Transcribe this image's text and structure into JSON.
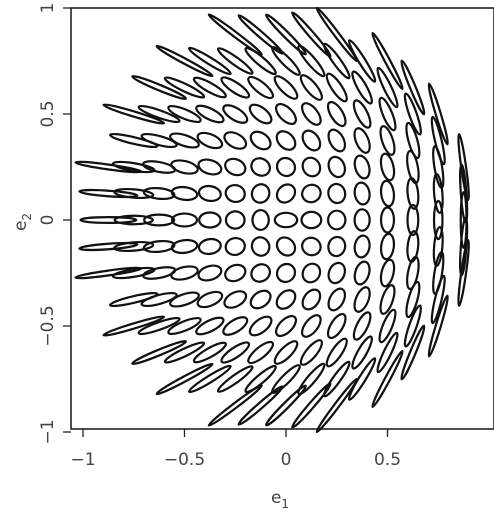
{
  "chart_data": {
    "type": "scatter",
    "title": "",
    "xlabel": {
      "base": "e",
      "sub": "1"
    },
    "ylabel": {
      "base": "e",
      "sub": "2"
    },
    "xlim": [
      -1,
      1
    ],
    "ylim": [
      -1,
      1
    ],
    "x_ticks": [
      -1,
      -0.5,
      0,
      0.5
    ],
    "x_tick_labels": [
      "−1",
      "−0.5",
      "0",
      "0.5"
    ],
    "y_ticks": [
      -1,
      -0.5,
      0,
      0.5,
      1
    ],
    "y_tick_labels": [
      "−1",
      "−0.5",
      "0",
      "0.5",
      "1"
    ],
    "marker": "ellipse shaped by ellipticity (e1, e2)",
    "grid_step": 0.125,
    "grid_values": [
      -0.875,
      -0.75,
      -0.625,
      -0.5,
      -0.375,
      -0.25,
      -0.125,
      0,
      0.125,
      0.25,
      0.375,
      0.5,
      0.625,
      0.75,
      0.875
    ],
    "x_max_shown": 0.875,
    "inside_unit_circle_only": true,
    "stroke_color": "#111111"
  }
}
